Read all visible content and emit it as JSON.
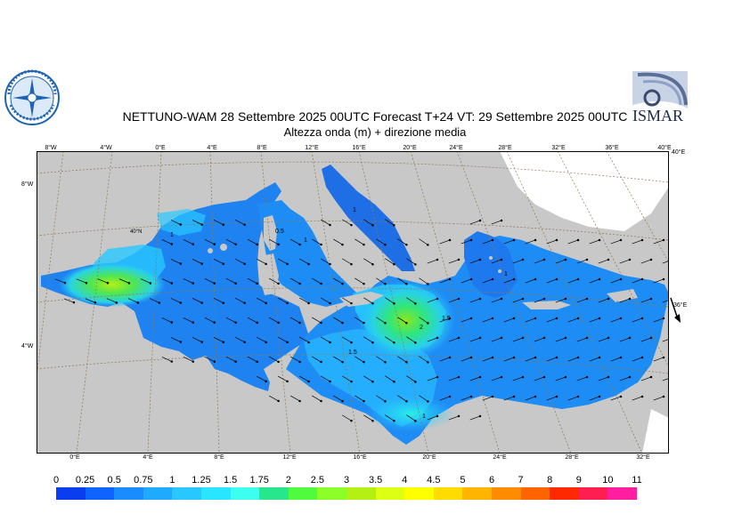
{
  "header": {
    "title": "NETTUNO-WAM  28 Settembre 2025 00UTC Forecast T+24 VT: 29 Settembre 2025 00UTC",
    "subtitle": "Altezza onda (m) + direzione media"
  },
  "logos": {
    "left": "aeronautica-militare-meteo-logo",
    "right": "ISMAR"
  },
  "map": {
    "top_longitudes": [
      "8°W",
      "4°W",
      "0°E",
      "4°E",
      "8°E",
      "12°E",
      "16°E",
      "20°E",
      "24°E",
      "28°E",
      "32°E",
      "36°E",
      "40°E"
    ],
    "bottom_longitudes": [
      "0°E",
      "4°E",
      "8°E",
      "12°E",
      "16°E",
      "20°E",
      "24°E",
      "28°E",
      "32°E"
    ],
    "left_latitudes": [
      "8°W",
      "4°W"
    ],
    "right_latitudes": [
      "40°E",
      "36°E"
    ],
    "inline_label": "40°N",
    "contour_labels": [
      "1",
      "1",
      "0.5",
      "1.5",
      "2",
      "1.5",
      "1",
      "1",
      "1"
    ]
  },
  "colorbar": {
    "labels": [
      "0",
      "0.25",
      "0.5",
      "0.75",
      "1",
      "1.25",
      "1.5",
      "1.75",
      "2",
      "2.5",
      "3",
      "3.5",
      "4",
      "4.5",
      "5",
      "6",
      "7",
      "8",
      "9",
      "10",
      "11"
    ],
    "colors": [
      "#0a3cf0",
      "#0f64ff",
      "#198cff",
      "#1eaaff",
      "#28c8ff",
      "#28e6ff",
      "#3cfff0",
      "#28e68c",
      "#50fa3c",
      "#8cff28",
      "#b4f014",
      "#dcff14",
      "#ffff00",
      "#ffdc00",
      "#ffb400",
      "#ff8c00",
      "#ff6400",
      "#ff2800",
      "#ff1e50",
      "#ff1ea0"
    ]
  }
}
